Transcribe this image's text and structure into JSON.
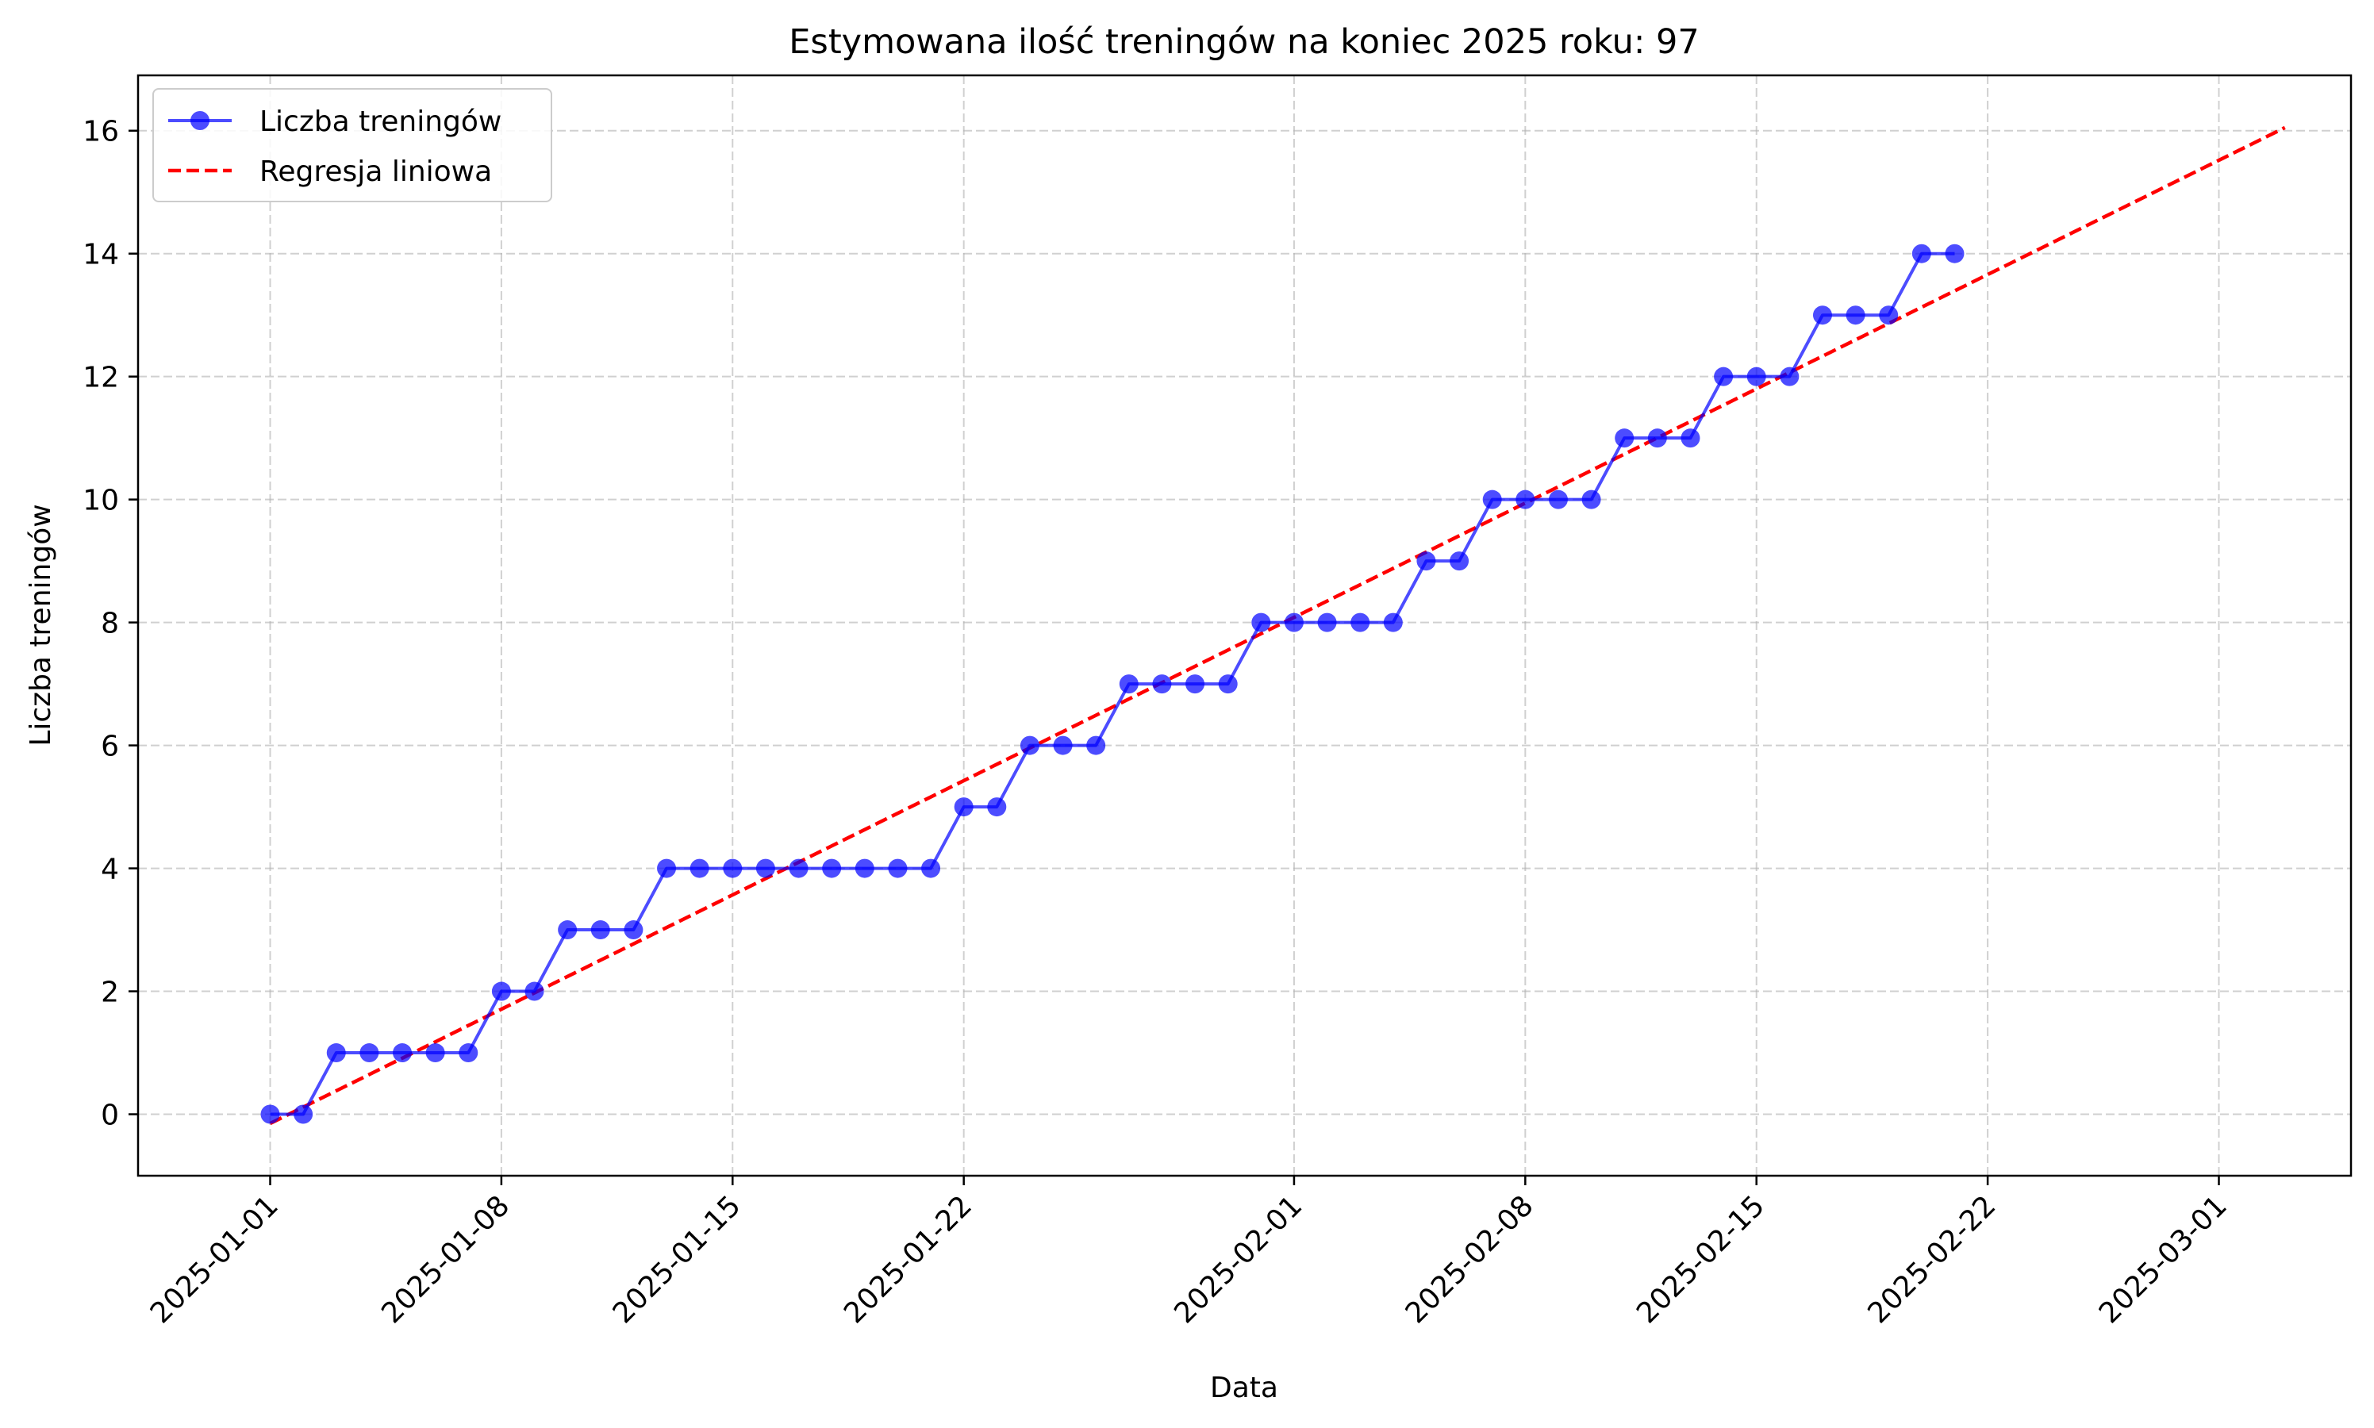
{
  "chart_data": {
    "type": "line",
    "title": "Estymowana ilość treningów na koniec 2025 roku: 97",
    "xlabel": "Data",
    "ylabel": "Liczba treningów",
    "x_axis_type": "date",
    "xlim": [
      "2024-12-28",
      "2025-03-05"
    ],
    "ylim": [
      -1,
      16.9
    ],
    "x_ticks": [
      "2025-01-01",
      "2025-01-08",
      "2025-01-15",
      "2025-01-22",
      "2025-02-01",
      "2025-02-08",
      "2025-02-15",
      "2025-02-22",
      "2025-03-01"
    ],
    "y_ticks": [
      "0",
      "2",
      "4",
      "6",
      "8",
      "10",
      "12",
      "14",
      "16"
    ],
    "grid": true,
    "legend_position": "upper-left",
    "series": [
      {
        "name": "Liczba treningów",
        "kind": "line-marker",
        "color": "#0000ff",
        "x": [
          "2025-01-01",
          "2025-01-02",
          "2025-01-03",
          "2025-01-04",
          "2025-01-05",
          "2025-01-06",
          "2025-01-07",
          "2025-01-08",
          "2025-01-09",
          "2025-01-10",
          "2025-01-11",
          "2025-01-12",
          "2025-01-13",
          "2025-01-14",
          "2025-01-15",
          "2025-01-16",
          "2025-01-17",
          "2025-01-18",
          "2025-01-19",
          "2025-01-20",
          "2025-01-21",
          "2025-01-22",
          "2025-01-23",
          "2025-01-24",
          "2025-01-25",
          "2025-01-26",
          "2025-01-27",
          "2025-01-28",
          "2025-01-29",
          "2025-01-30",
          "2025-01-31",
          "2025-02-01",
          "2025-02-02",
          "2025-02-03",
          "2025-02-04",
          "2025-02-05",
          "2025-02-06",
          "2025-02-07",
          "2025-02-08",
          "2025-02-09",
          "2025-02-10",
          "2025-02-11",
          "2025-02-12",
          "2025-02-13",
          "2025-02-14",
          "2025-02-15",
          "2025-02-16",
          "2025-02-17",
          "2025-02-18",
          "2025-02-19",
          "2025-02-20",
          "2025-02-21"
        ],
        "y": [
          0,
          0,
          1,
          1,
          1,
          1,
          1,
          2,
          2,
          3,
          3,
          3,
          4,
          4,
          4,
          4,
          4,
          4,
          4,
          4,
          4,
          5,
          5,
          6,
          6,
          6,
          7,
          7,
          7,
          7,
          8,
          8,
          8,
          8,
          8,
          9,
          9,
          10,
          10,
          10,
          10,
          11,
          11,
          11,
          12,
          12,
          12,
          13,
          13,
          13,
          14,
          14
        ]
      },
      {
        "name": "Regresja liniowa",
        "kind": "dashed-line",
        "color": "#ff0000",
        "x": [
          "2025-01-01",
          "2025-03-03"
        ],
        "y": [
          -0.15,
          16.05
        ]
      }
    ]
  }
}
